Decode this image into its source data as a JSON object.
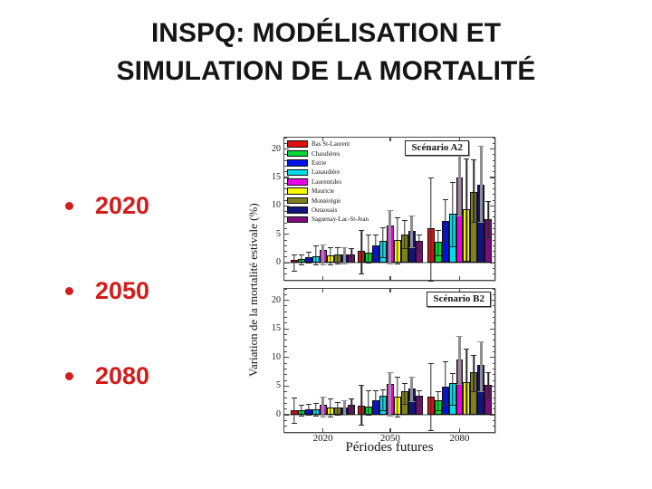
{
  "slide": {
    "title_line1": "INSPQ: MODÉLISATION ET",
    "title_line2": "SIMULATION DE LA MORTALITÉ",
    "title_color": "#151515",
    "bullet_color": "#d21d1d",
    "bullets": [
      "2020",
      "2050",
      "2080"
    ]
  },
  "chart_data": {
    "type": "bar",
    "title": "",
    "ylabel": "Variation de la mortalité estivale (%)",
    "xlabel": "Périodes futures",
    "categories": [
      "2020",
      "2050",
      "2080"
    ],
    "ylim": [
      -3,
      22
    ],
    "yticks": [
      0,
      5,
      10,
      15,
      20
    ],
    "grid": false,
    "legend_position": "top-left of Scénario A2 panel",
    "regions": [
      {
        "name": "Bas St-Laurent",
        "color": "#e01010"
      },
      {
        "name": "Chaudières",
        "color": "#00d837"
      },
      {
        "name": "Estrie",
        "color": "#0010e8"
      },
      {
        "name": "Lanaudière",
        "color": "#00dce8"
      },
      {
        "name": "Laurentides",
        "color": "#e800e8"
      },
      {
        "name": "Mauricie",
        "color": "#f8f800"
      },
      {
        "name": "Montérégie",
        "color": "#7e7e22"
      },
      {
        "name": "Outaouais",
        "color": "#141478"
      },
      {
        "name": "Saguenay-Lac-St-Jean",
        "color": "#7c0c7c"
      }
    ],
    "panels": [
      {
        "label": "Scénario A2",
        "values": [
          [
            0.5,
            2.1,
            6.0
          ],
          [
            0.6,
            1.7,
            3.7
          ],
          [
            1.0,
            3.1,
            7.3
          ],
          [
            1.2,
            3.9,
            8.6
          ],
          [
            2.2,
            6.6,
            15.0
          ],
          [
            1.3,
            4.0,
            9.4
          ],
          [
            1.5,
            5.0,
            12.4
          ],
          [
            1.5,
            5.6,
            13.7
          ],
          [
            1.5,
            3.8,
            7.6
          ]
        ],
        "err_up": [
          [
            1.0,
            3.7,
            9.0
          ],
          [
            0.9,
            3.2,
            2.0
          ],
          [
            1.0,
            1.9,
            3.9
          ],
          [
            1.8,
            2.4,
            5.6
          ],
          [
            1.0,
            2.6,
            6.0
          ],
          [
            1.5,
            4.0,
            8.9
          ],
          [
            1.3,
            2.5,
            5.8
          ],
          [
            1.3,
            2.7,
            6.8
          ],
          [
            1.1,
            1.2,
            3.2
          ]
        ],
        "err_down": [
          [
            1.7,
            3.9,
            9.0
          ],
          [
            0.8,
            1.5,
            2.2
          ],
          [
            0.8,
            2.0,
            3.3
          ],
          [
            1.4,
            2.7,
            5.6
          ],
          [
            2.4,
            6.6,
            6.5
          ],
          [
            1.5,
            4.0,
            8.9
          ],
          [
            1.5,
            2.2,
            5.1
          ],
          [
            1.4,
            2.7,
            6.4
          ],
          [
            1.2,
            1.5,
            3.0
          ]
        ]
      },
      {
        "label": "Scénario B2",
        "values": [
          [
            0.8,
            1.6,
            3.2
          ],
          [
            0.8,
            1.4,
            2.5
          ],
          [
            1.0,
            2.6,
            4.9
          ],
          [
            1.0,
            3.3,
            5.5
          ],
          [
            1.8,
            5.4,
            9.7
          ],
          [
            1.2,
            3.2,
            5.7
          ],
          [
            1.3,
            4.1,
            7.4
          ],
          [
            1.3,
            4.6,
            8.7
          ],
          [
            1.8,
            3.3,
            5.2
          ]
        ],
        "err_up": [
          [
            2.2,
            3.6,
            5.8
          ],
          [
            0.9,
            2.9,
            1.6
          ],
          [
            0.9,
            1.6,
            4.4
          ],
          [
            1.1,
            1.2,
            1.8
          ],
          [
            1.3,
            2.0,
            4.0
          ],
          [
            1.6,
            3.5,
            5.8
          ],
          [
            1.0,
            1.5,
            3.1
          ],
          [
            1.2,
            2.0,
            4.2
          ],
          [
            1.0,
            1.0,
            2.2
          ]
        ],
        "err_down": [
          [
            2.0,
            3.1,
            5.7
          ],
          [
            0.8,
            1.3,
            1.5
          ],
          [
            0.8,
            1.7,
            3.0
          ],
          [
            1.0,
            2.4,
            3.6
          ],
          [
            1.9,
            5.4,
            4.1
          ],
          [
            1.4,
            3.3,
            5.3
          ],
          [
            1.1,
            2.0,
            3.2
          ],
          [
            1.2,
            2.1,
            4.4
          ],
          [
            1.1,
            1.4,
            2.0
          ]
        ]
      }
    ]
  }
}
